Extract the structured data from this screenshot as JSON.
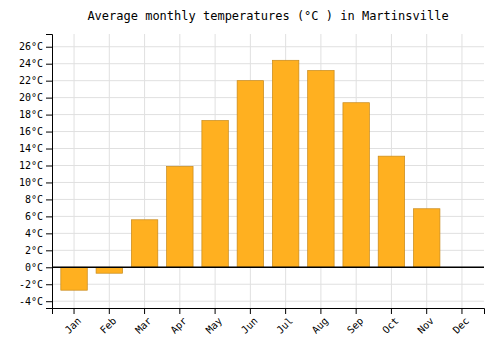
{
  "chart_data": {
    "type": "bar",
    "title": "Average monthly temperatures (°C ) in Martinsville",
    "categories": [
      "Jan",
      "Feb",
      "Mar",
      "Apr",
      "May",
      "Jun",
      "Jul",
      "Aug",
      "Sep",
      "Oct",
      "Nov",
      "Dec"
    ],
    "values": [
      -2.7,
      -0.7,
      5.6,
      11.9,
      17.3,
      22.0,
      24.4,
      23.2,
      19.4,
      13.1,
      6.9,
      0.0
    ],
    "color": "#FFB020",
    "ylim": [
      -4.8,
      27.5
    ],
    "yticks": [
      {
        "value": -4,
        "label": "-4°C"
      },
      {
        "value": -2,
        "label": "-2°C"
      },
      {
        "value": 0,
        "label": "0°C"
      },
      {
        "value": 2,
        "label": "2°C"
      },
      {
        "value": 4,
        "label": "4°C"
      },
      {
        "value": 6,
        "label": "6°C"
      },
      {
        "value": 8,
        "label": "8°C"
      },
      {
        "value": 10,
        "label": "10°C"
      },
      {
        "value": 12,
        "label": "12°C"
      },
      {
        "value": 14,
        "label": "14°C"
      },
      {
        "value": 16,
        "label": "16°C"
      },
      {
        "value": 18,
        "label": "18°C"
      },
      {
        "value": 20,
        "label": "20°C"
      },
      {
        "value": 22,
        "label": "22°C"
      },
      {
        "value": 24,
        "label": "24°C"
      },
      {
        "value": 26,
        "label": "26°C"
      }
    ],
    "grid": true
  }
}
